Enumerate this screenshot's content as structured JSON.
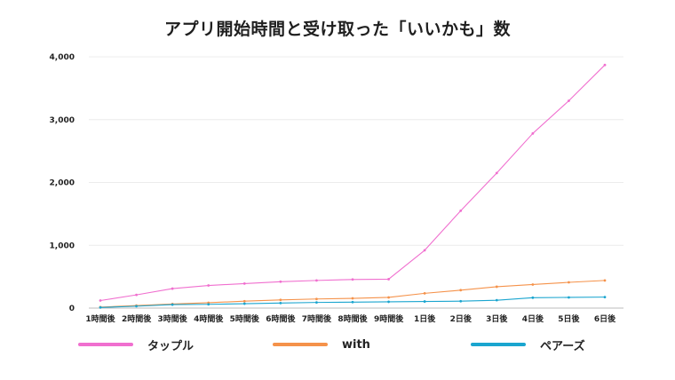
{
  "chart_data": {
    "type": "line",
    "title": "アプリ開始時間と受け取った「いいかも」数",
    "xlabel": "",
    "ylabel": "",
    "ylim": [
      0,
      4000
    ],
    "yticks": [
      0,
      1000,
      2000,
      3000,
      4000
    ],
    "ytick_labels": [
      "0",
      "1,000",
      "2,000",
      "3,000",
      "4,000"
    ],
    "categories": [
      "1時間後",
      "2時間後",
      "3時間後",
      "4時間後",
      "5時間後",
      "6時間後",
      "7時間後",
      "8時間後",
      "9時間後",
      "1日後",
      "2日後",
      "3日後",
      "4日後",
      "5日後",
      "6日後"
    ],
    "grid": true,
    "legend_position": "bottom",
    "series": [
      {
        "name": "タップル",
        "color": "#f06fcf",
        "values": [
          120,
          210,
          310,
          360,
          390,
          420,
          440,
          455,
          460,
          920,
          1550,
          2150,
          2780,
          3300,
          3870
        ]
      },
      {
        "name": "with",
        "color": "#f5924a",
        "values": [
          15,
          40,
          65,
          85,
          110,
          130,
          145,
          155,
          170,
          235,
          285,
          340,
          375,
          410,
          440
        ]
      },
      {
        "name": "ペアーズ",
        "color": "#1aa5cf",
        "values": [
          10,
          30,
          55,
          60,
          70,
          80,
          90,
          95,
          100,
          105,
          110,
          125,
          165,
          170,
          175
        ]
      }
    ]
  }
}
